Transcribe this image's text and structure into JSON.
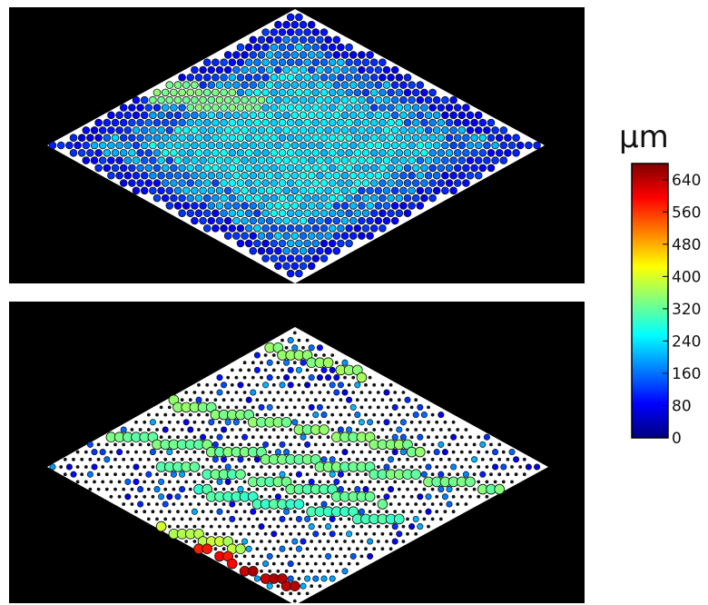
{
  "colorbar": {
    "unit": "µm",
    "tick_labels": [
      "640",
      "560",
      "480",
      "400",
      "320",
      "240",
      "160",
      "80",
      "0"
    ],
    "ticks": [
      640,
      560,
      480,
      400,
      320,
      240,
      160,
      80,
      0
    ],
    "range": [
      0,
      680
    ],
    "colormap": "jet",
    "colormap_stops": [
      "#00007f",
      "#0000ff",
      "#0080ff",
      "#00ffff",
      "#80ff80",
      "#ffff00",
      "#ff8000",
      "#ff0000",
      "#7f0000"
    ]
  },
  "panels": [
    {
      "name": "top-panel",
      "background": "#000000",
      "plate": "#ffffff",
      "description_values_um": {
        "typical_outer": 120,
        "typical_inner": 240,
        "highlight": 330
      }
    },
    {
      "name": "bottom-panel",
      "background": "#000000",
      "plate": "#ffffff",
      "bands_um": [
        {
          "level": 350
        },
        {
          "level": 340
        },
        {
          "level": 330
        },
        {
          "level": 320
        },
        {
          "level": 300
        },
        {
          "level": 380
        },
        {
          "level": 590
        },
        {
          "level": 640
        }
      ]
    }
  ]
}
